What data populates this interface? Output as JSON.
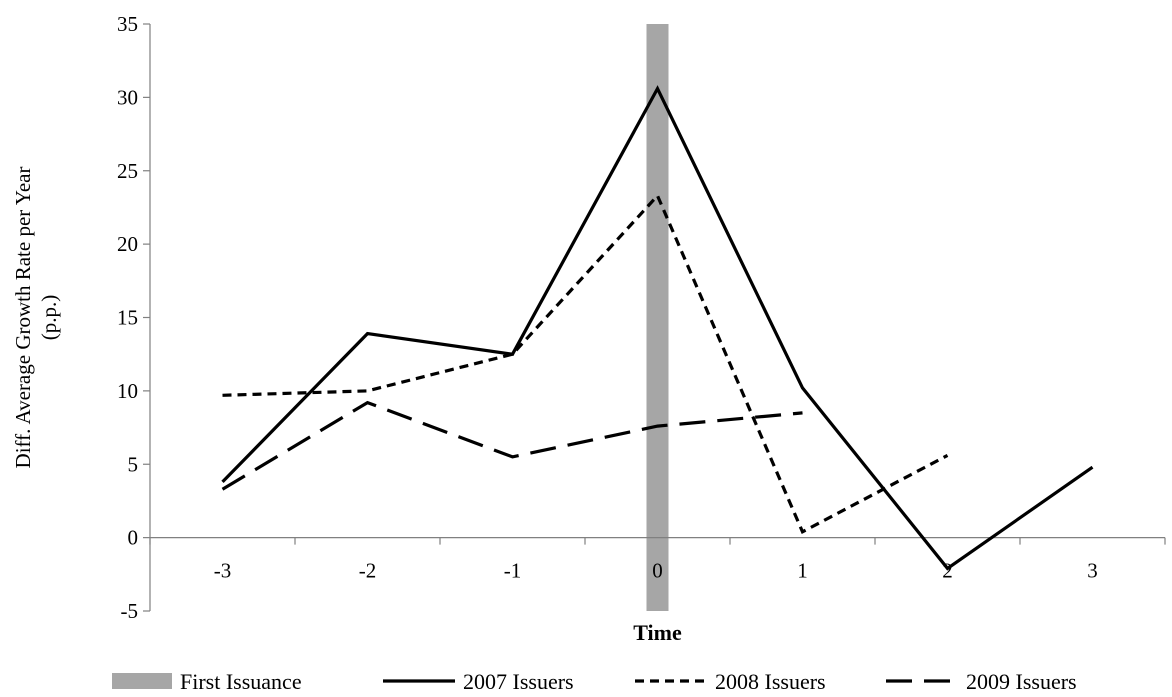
{
  "chart_data": {
    "type": "line",
    "title": "",
    "xlabel": "Time",
    "ylabel_lines": [
      "Diff. Average Growth Rate per Year",
      "(p.p.)"
    ],
    "categories": [
      "-3",
      "-2",
      "-1",
      "0",
      "1",
      "2",
      "3"
    ],
    "x": [
      -3,
      -2,
      -1,
      0,
      1,
      2,
      3
    ],
    "ylim": [
      -5,
      35
    ],
    "yticks": [
      -5,
      0,
      5,
      10,
      15,
      20,
      25,
      30,
      35
    ],
    "highlight": {
      "name": "First Issuance",
      "x": 0,
      "color": "#a6a6a6"
    },
    "series": [
      {
        "name": "2007 Issuers",
        "style": "solid",
        "color": "#000000",
        "values": [
          3.8,
          13.9,
          12.5,
          30.6,
          10.2,
          -2.1,
          4.8
        ]
      },
      {
        "name": "2008 Issuers",
        "style": "short-dash",
        "color": "#000000",
        "values": [
          9.7,
          10.0,
          12.5,
          23.3,
          0.4,
          5.6,
          null
        ]
      },
      {
        "name": "2009 Issuers",
        "style": "long-dash",
        "color": "#000000",
        "values": [
          3.3,
          9.2,
          5.5,
          7.6,
          8.5,
          null,
          null
        ]
      }
    ],
    "legend": {
      "position": "bottom",
      "items": [
        "First Issuance",
        "2007 Issuers",
        "2008 Issuers",
        "2009 Issuers"
      ]
    },
    "grid": false
  }
}
